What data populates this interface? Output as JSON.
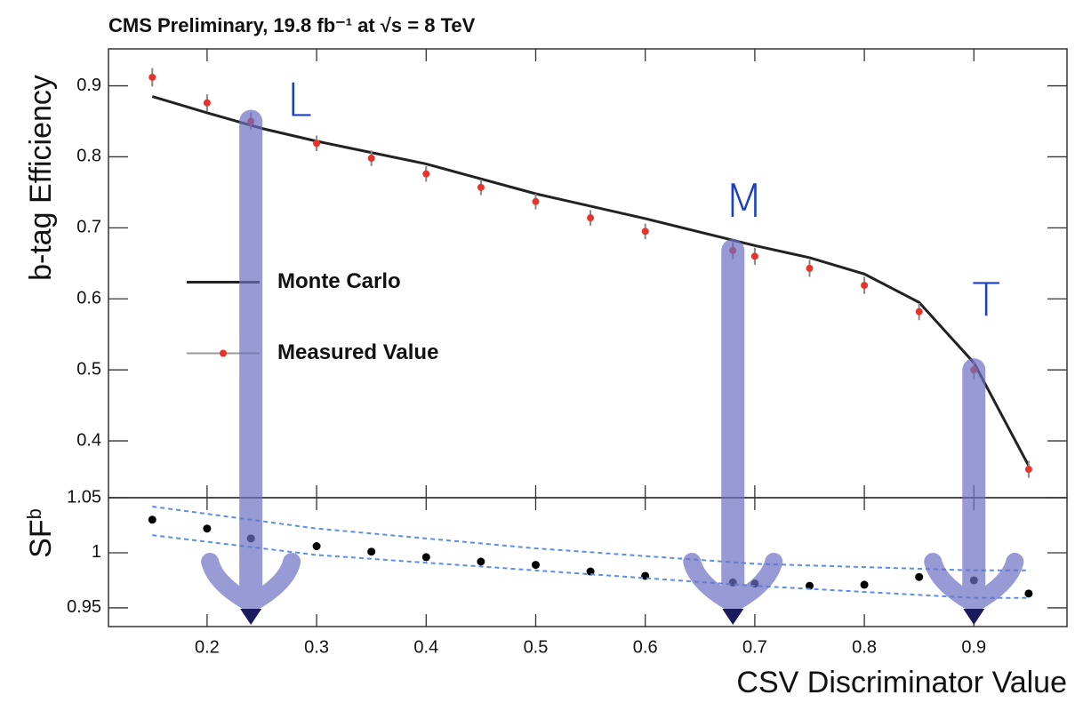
{
  "chart_data": [
    {
      "type": "line",
      "title": "CMS Preliminary, 19.8 fb⁻¹ at √s = 8 TeV",
      "ylabel": "b-tag Efficiency",
      "xlim": [
        0.11,
        0.985
      ],
      "ylim": [
        0.32,
        0.952
      ],
      "xticks": [
        0.2,
        0.3,
        0.4,
        0.5,
        0.6,
        0.7,
        0.8,
        0.9
      ],
      "yticks": [
        0.4,
        0.5,
        0.6,
        0.7,
        0.8,
        0.9
      ],
      "legend": "center-left",
      "series": [
        {
          "name": "Monte Carlo",
          "kind": "line",
          "color": "#222222",
          "x": [
            0.15,
            0.2,
            0.25,
            0.3,
            0.4,
            0.5,
            0.6,
            0.7,
            0.75,
            0.8,
            0.85,
            0.9,
            0.95
          ],
          "values": [
            0.885,
            0.862,
            0.84,
            0.822,
            0.79,
            0.748,
            0.713,
            0.675,
            0.658,
            0.635,
            0.595,
            0.51,
            0.365
          ]
        },
        {
          "name": "Measured Value",
          "kind": "errorbar",
          "color": "#e8332a",
          "x": [
            0.15,
            0.2,
            0.24,
            0.3,
            0.35,
            0.4,
            0.45,
            0.5,
            0.55,
            0.6,
            0.68,
            0.7,
            0.75,
            0.8,
            0.85,
            0.9,
            0.95
          ],
          "values": [
            0.912,
            0.876,
            0.85,
            0.819,
            0.798,
            0.776,
            0.757,
            0.737,
            0.714,
            0.695,
            0.668,
            0.66,
            0.643,
            0.619,
            0.582,
            0.5,
            0.36
          ],
          "errors": [
            0.013,
            0.012,
            0.012,
            0.011,
            0.011,
            0.011,
            0.011,
            0.011,
            0.011,
            0.011,
            0.012,
            0.012,
            0.012,
            0.012,
            0.012,
            0.013,
            0.012
          ]
        }
      ],
      "annotations": [
        {
          "text": "L",
          "x": 0.24
        },
        {
          "text": "M",
          "x": 0.68
        },
        {
          "text": "T",
          "x": 0.9
        }
      ]
    },
    {
      "type": "scatter",
      "ylabel": "SF",
      "ylabel_subscript": "b",
      "xlabel": "CSV Discriminator Value",
      "xlim": [
        0.11,
        0.985
      ],
      "ylim": [
        0.933,
        1.05
      ],
      "xticks": [
        0.2,
        0.3,
        0.4,
        0.5,
        0.6,
        0.7,
        0.8,
        0.9
      ],
      "yticks": [
        0.95,
        1,
        1.05
      ],
      "series": [
        {
          "kind": "points",
          "color": "#000000",
          "x": [
            0.15,
            0.2,
            0.24,
            0.3,
            0.35,
            0.4,
            0.45,
            0.5,
            0.55,
            0.6,
            0.68,
            0.7,
            0.75,
            0.8,
            0.85,
            0.9,
            0.95
          ],
          "values": [
            1.03,
            1.022,
            1.013,
            1.006,
            1.001,
            0.996,
            0.992,
            0.989,
            0.983,
            0.979,
            0.973,
            0.972,
            0.97,
            0.971,
            0.978,
            0.975,
            0.963
          ]
        },
        {
          "kind": "dashed",
          "color": "#5b8def",
          "x": [
            0.15,
            0.3,
            0.5,
            0.7,
            0.9,
            0.95
          ],
          "values": [
            1.042,
            1.022,
            1.004,
            0.99,
            0.984,
            0.984
          ]
        },
        {
          "kind": "dashed",
          "color": "#5b8def",
          "x": [
            0.15,
            0.3,
            0.5,
            0.7,
            0.9,
            0.95
          ],
          "values": [
            1.016,
            0.998,
            0.984,
            0.97,
            0.959,
            0.959
          ]
        }
      ]
    }
  ]
}
